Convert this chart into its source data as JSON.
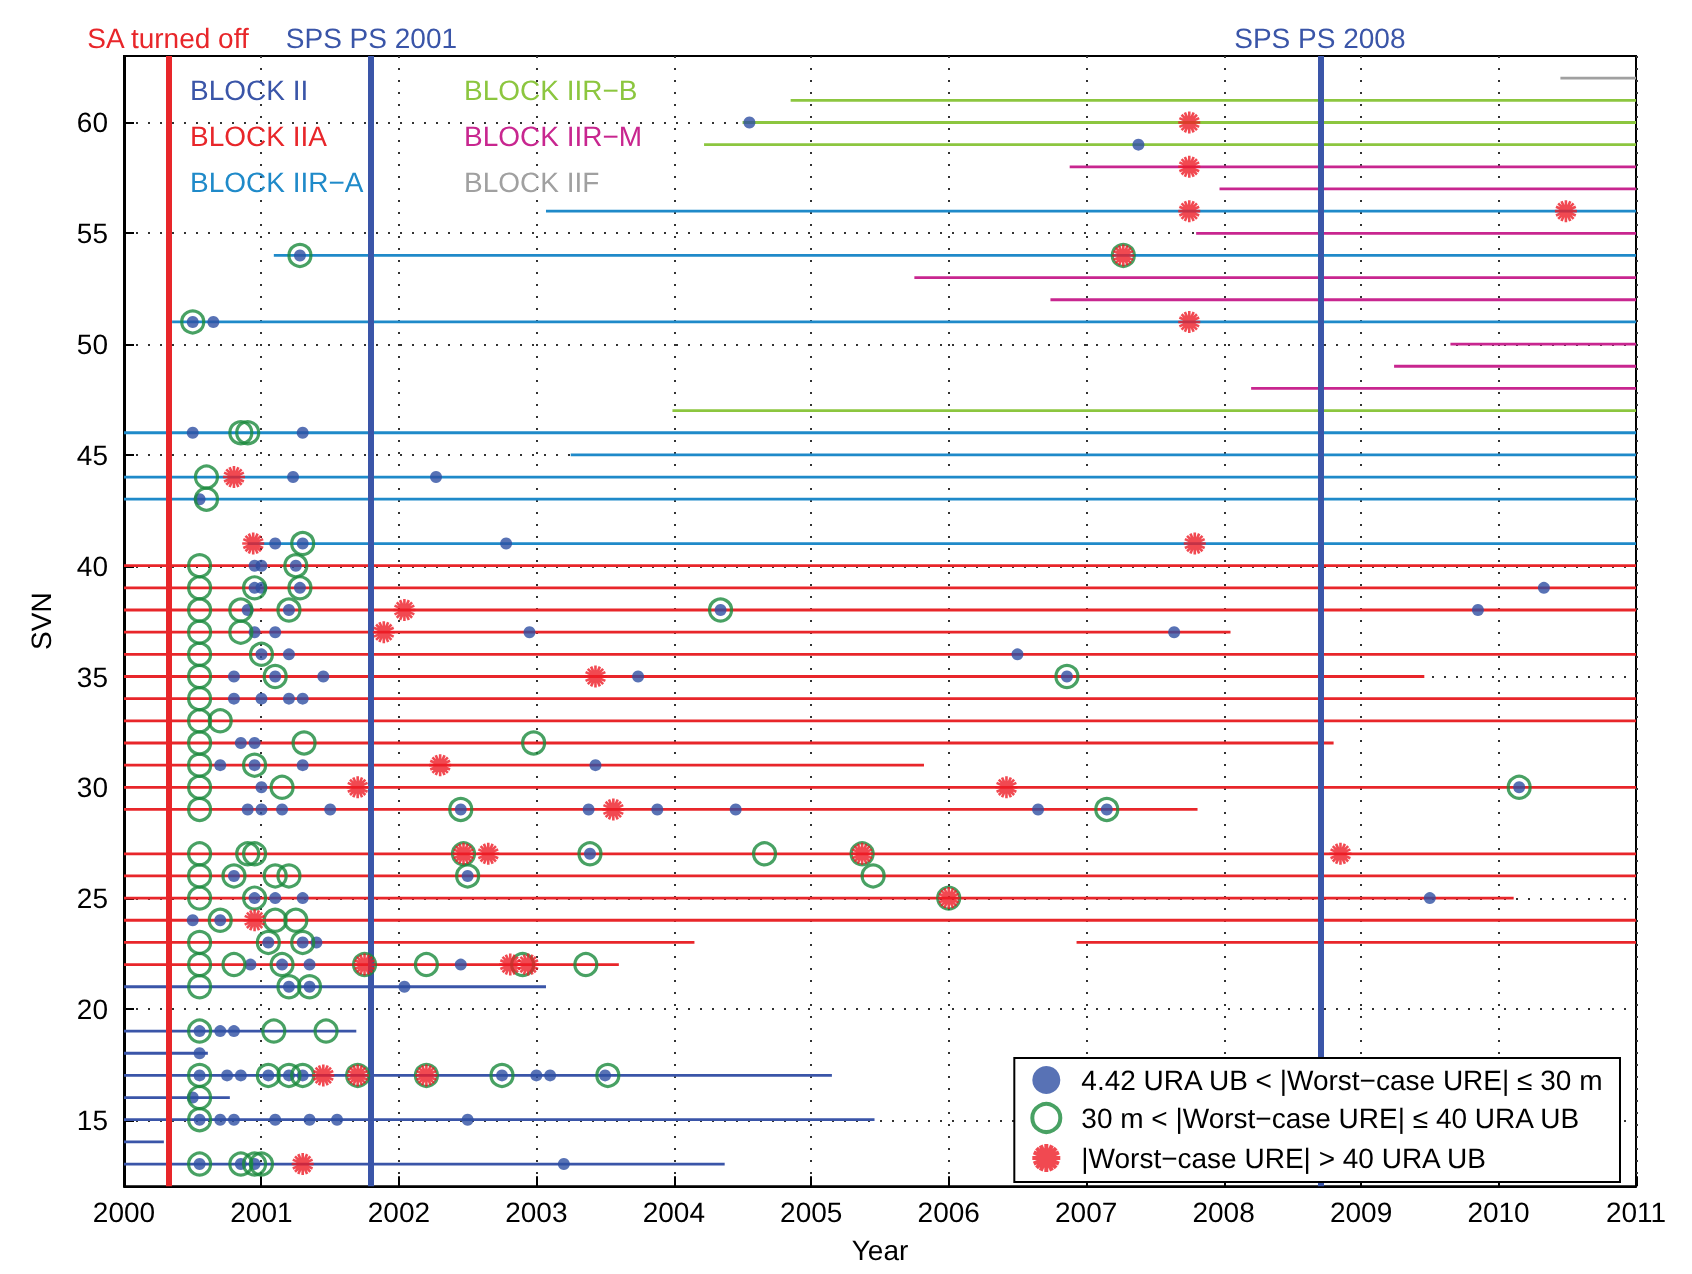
{
  "chart_data": {
    "type": "scatter",
    "xlabel": "Year",
    "ylabel": "SVN",
    "xlim": [
      2000,
      2011
    ],
    "ylim": [
      12,
      63
    ],
    "xticks": [
      2000,
      2001,
      2002,
      2003,
      2004,
      2005,
      2006,
      2007,
      2008,
      2009,
      2010,
      2011
    ],
    "yticks": [
      15,
      20,
      25,
      30,
      35,
      40,
      45,
      50,
      55,
      60
    ],
    "grid": true,
    "legend": "bottom right",
    "ref_lines": [
      {
        "axis": "x",
        "value": 2000.32,
        "label": "SA turned off",
        "color": "#e8262a"
      },
      {
        "axis": "x",
        "value": 2001.8,
        "label": "SPS PS 2001",
        "color": "#3a55a8"
      },
      {
        "axis": "x",
        "value": 2008.7,
        "label": "SPS PS 2008",
        "color": "#3a55a8"
      }
    ],
    "series": [
      {
        "name": "BLOCK II",
        "type": "line",
        "marker": "none",
        "color": "#3a55a8",
        "x": [
          2000,
          2004.37
        ],
        "values": [
          13,
          13
        ]
      },
      {
        "type": "line",
        "marker": "none",
        "color": "#3a55a8",
        "x": [
          2000,
          2000.29
        ],
        "values": [
          14,
          14
        ]
      },
      {
        "type": "line",
        "marker": "none",
        "color": "#3a55a8",
        "x": [
          2000,
          2005.46
        ],
        "values": [
          15,
          15
        ]
      },
      {
        "type": "line",
        "marker": "none",
        "color": "#3a55a8",
        "x": [
          2000,
          2000.77
        ],
        "values": [
          16,
          16
        ]
      },
      {
        "type": "line",
        "marker": "none",
        "color": "#3a55a8",
        "x": [
          2000,
          2005.15
        ],
        "values": [
          17,
          17
        ]
      },
      {
        "type": "line",
        "marker": "none",
        "color": "#3a55a8",
        "x": [
          2000,
          2000.61
        ],
        "values": [
          18,
          18
        ]
      },
      {
        "type": "line",
        "marker": "none",
        "color": "#3a55a8",
        "x": [
          2000,
          2001.69
        ],
        "values": [
          19,
          19
        ]
      },
      {
        "type": "line",
        "marker": "none",
        "color": "#3a55a8",
        "x": [
          2000,
          2003.07
        ],
        "values": [
          21,
          21
        ]
      },
      {
        "name": "BLOCK IIA",
        "type": "line",
        "marker": "none",
        "color": "#e8262a",
        "x": [
          2000,
          2003.6
        ],
        "values": [
          22,
          22
        ]
      },
      {
        "type": "line",
        "marker": "none",
        "color": "#e8262a",
        "x": [
          2000,
          2004.15
        ],
        "values": [
          23,
          23
        ]
      },
      {
        "type": "line",
        "marker": "none",
        "color": "#e8262a",
        "x": [
          2006.93,
          2011
        ],
        "values": [
          23,
          23
        ]
      },
      {
        "type": "line",
        "marker": "none",
        "color": "#e8262a",
        "x": [
          2000,
          2011
        ],
        "values": [
          24,
          24
        ]
      },
      {
        "type": "line",
        "marker": "none",
        "color": "#e8262a",
        "x": [
          2000,
          2010.11
        ],
        "values": [
          25,
          25
        ]
      },
      {
        "type": "line",
        "marker": "none",
        "color": "#e8262a",
        "x": [
          2000,
          2011
        ],
        "values": [
          26,
          26
        ]
      },
      {
        "type": "line",
        "marker": "none",
        "color": "#e8262a",
        "x": [
          2000,
          2011
        ],
        "values": [
          27,
          27
        ]
      },
      {
        "type": "line",
        "marker": "none",
        "color": "#e8262a",
        "x": [
          2000,
          2007.81
        ],
        "values": [
          29,
          29
        ]
      },
      {
        "type": "line",
        "marker": "none",
        "color": "#e8262a",
        "x": [
          2000,
          2011
        ],
        "values": [
          30,
          30
        ]
      },
      {
        "type": "line",
        "marker": "none",
        "color": "#e8262a",
        "x": [
          2000,
          2005.82
        ],
        "values": [
          31,
          31
        ]
      },
      {
        "type": "line",
        "marker": "none",
        "color": "#e8262a",
        "x": [
          2000,
          2008.8
        ],
        "values": [
          32,
          32
        ]
      },
      {
        "type": "line",
        "marker": "none",
        "color": "#e8262a",
        "x": [
          2000,
          2011
        ],
        "values": [
          33,
          33
        ]
      },
      {
        "type": "line",
        "marker": "none",
        "color": "#e8262a",
        "x": [
          2000,
          2011
        ],
        "values": [
          34,
          34
        ]
      },
      {
        "type": "line",
        "marker": "none",
        "color": "#e8262a",
        "x": [
          2000,
          2009.46
        ],
        "values": [
          35,
          35
        ]
      },
      {
        "type": "line",
        "marker": "none",
        "color": "#e8262a",
        "x": [
          2000,
          2011
        ],
        "values": [
          36,
          36
        ]
      },
      {
        "type": "line",
        "marker": "none",
        "color": "#e8262a",
        "x": [
          2000,
          2008.05
        ],
        "values": [
          37,
          37
        ]
      },
      {
        "type": "line",
        "marker": "none",
        "color": "#e8262a",
        "x": [
          2000,
          2011
        ],
        "values": [
          38,
          38
        ]
      },
      {
        "type": "line",
        "marker": "none",
        "color": "#e8262a",
        "x": [
          2000,
          2011
        ],
        "values": [
          39,
          39
        ]
      },
      {
        "type": "line",
        "marker": "none",
        "color": "#e8262a",
        "x": [
          2000,
          2011
        ],
        "values": [
          40,
          40
        ]
      },
      {
        "name": "BLOCK IIR−A",
        "type": "line",
        "marker": "none",
        "color": "#1f8ac9",
        "x": [
          2000.9,
          2011
        ],
        "values": [
          41,
          41
        ]
      },
      {
        "type": "line",
        "marker": "none",
        "color": "#1f8ac9",
        "x": [
          2000,
          2011
        ],
        "values": [
          43,
          43
        ]
      },
      {
        "type": "line",
        "marker": "none",
        "color": "#1f8ac9",
        "x": [
          2000,
          2011
        ],
        "values": [
          44,
          44
        ]
      },
      {
        "type": "line",
        "marker": "none",
        "color": "#1f8ac9",
        "x": [
          2003.25,
          2011
        ],
        "values": [
          45,
          45
        ]
      },
      {
        "type": "line",
        "marker": "none",
        "color": "#1f8ac9",
        "x": [
          2000,
          2011
        ],
        "values": [
          46,
          46
        ]
      },
      {
        "type": "line",
        "marker": "none",
        "color": "#1f8ac9",
        "x": [
          2000.35,
          2011
        ],
        "values": [
          51,
          51
        ]
      },
      {
        "type": "line",
        "marker": "none",
        "color": "#1f8ac9",
        "x": [
          2001.09,
          2011
        ],
        "values": [
          54,
          54
        ]
      },
      {
        "type": "line",
        "marker": "none",
        "color": "#1f8ac9",
        "x": [
          2003.07,
          2011
        ],
        "values": [
          56,
          56
        ]
      },
      {
        "name": "BLOCK IIR−B",
        "type": "line",
        "marker": "none",
        "color": "#8cc63f",
        "x": [
          2003.99,
          2011
        ],
        "values": [
          47,
          47
        ]
      },
      {
        "type": "line",
        "marker": "none",
        "color": "#8cc63f",
        "x": [
          2004.22,
          2011
        ],
        "values": [
          59,
          59
        ]
      },
      {
        "type": "line",
        "marker": "none",
        "color": "#8cc63f",
        "x": [
          2004.5,
          2011
        ],
        "values": [
          60,
          60
        ]
      },
      {
        "type": "line",
        "marker": "none",
        "color": "#8cc63f",
        "x": [
          2004.85,
          2011
        ],
        "values": [
          61,
          61
        ]
      },
      {
        "name": "BLOCK IIR−M",
        "type": "line",
        "marker": "none",
        "color": "#c8268f",
        "x": [
          2008.2,
          2011
        ],
        "values": [
          48,
          48
        ]
      },
      {
        "type": "line",
        "marker": "none",
        "color": "#c8268f",
        "x": [
          2009.24,
          2011
        ],
        "values": [
          49,
          49
        ]
      },
      {
        "type": "line",
        "marker": "none",
        "color": "#c8268f",
        "x": [
          2009.65,
          2011
        ],
        "values": [
          50,
          50
        ]
      },
      {
        "type": "line",
        "marker": "none",
        "color": "#c8268f",
        "x": [
          2006.74,
          2011
        ],
        "values": [
          52,
          52
        ]
      },
      {
        "type": "line",
        "marker": "none",
        "color": "#c8268f",
        "x": [
          2005.75,
          2011
        ],
        "values": [
          53,
          53
        ]
      },
      {
        "type": "line",
        "marker": "none",
        "color": "#c8268f",
        "x": [
          2007.8,
          2011
        ],
        "values": [
          55,
          55
        ]
      },
      {
        "type": "line",
        "marker": "none",
        "color": "#c8268f",
        "x": [
          2007.97,
          2011
        ],
        "values": [
          57,
          57
        ]
      },
      {
        "type": "line",
        "marker": "none",
        "color": "#c8268f",
        "x": [
          2006.88,
          2011
        ],
        "values": [
          58,
          58
        ]
      },
      {
        "name": "BLOCK IIF",
        "type": "line",
        "marker": "none",
        "color": "#a0a0a0",
        "x": [
          2010.45,
          2011
        ],
        "values": [
          62,
          62
        ]
      },
      {
        "name": "4.42 URA UB < |Worst−case URE| ≤ 30 m",
        "marker": "circle",
        "color": "#2e4fa3",
        "x": [
          2000.55,
          2000.85,
          2000.95,
          2003.2,
          2000.55,
          2000.7,
          2000.8,
          2001.1,
          2001.35,
          2001.55,
          2002.5,
          2000.5,
          2000.55,
          2000.75,
          2000.85,
          2001.05,
          2001.2,
          2001.3,
          2002.75,
          2003.0,
          2003.1,
          2003.5,
          2000.55,
          2000.55,
          2000.7,
          2000.8,
          2001.2,
          2001.35,
          2002.04,
          2000.92,
          2001.15,
          2001.35,
          2002.45,
          2001.05,
          2001.3,
          2001.4,
          2000.5,
          2000.7,
          2000.95,
          2001.1,
          2001.3,
          2009.5,
          2000.8,
          2002.5,
          2003.39,
          2000.9,
          2001.0,
          2001.15,
          2001.5,
          2002.45,
          2003.38,
          2003.88,
          2004.45,
          2006.65,
          2007.15,
          2001.0,
          2010.15,
          2000.7,
          2000.95,
          2001.3,
          2003.43,
          2000.85,
          2000.95,
          2000.8,
          2001.0,
          2001.2,
          2001.3,
          2000.8,
          2001.1,
          2001.45,
          2003.74,
          2006.86,
          2001.0,
          2001.2,
          2006.5,
          2000.95,
          2001.1,
          2002.95,
          2007.64,
          2000.9,
          2001.2,
          2004.34,
          2009.85,
          2000.95,
          2001.0,
          2001.28,
          2010.33,
          2000.95,
          2001.0,
          2001.25,
          2001.1,
          2001.3,
          2002.78,
          2000.55,
          2001.23,
          2002.27,
          2000.5,
          2001.3,
          2000.5,
          2000.65,
          2001.28,
          2007.38,
          2004.55
        ],
        "values": [
          13,
          13,
          13,
          13,
          15,
          15,
          15,
          15,
          15,
          15,
          15,
          16,
          17,
          17,
          17,
          17,
          17,
          17,
          17,
          17,
          17,
          17,
          18,
          19,
          19,
          19,
          21,
          21,
          21,
          22,
          22,
          22,
          22,
          23,
          23,
          23,
          24,
          24,
          25,
          25,
          25,
          25,
          26,
          26,
          27,
          29,
          29,
          29,
          29,
          29,
          29,
          29,
          29,
          29,
          29,
          30,
          30,
          31,
          31,
          31,
          31,
          32,
          32,
          34,
          34,
          34,
          34,
          35,
          35,
          35,
          35,
          35,
          36,
          36,
          36,
          37,
          37,
          37,
          37,
          38,
          38,
          38,
          38,
          39,
          39,
          39,
          39,
          40,
          40,
          40,
          41,
          41,
          41,
          43,
          44,
          44,
          46,
          46,
          51,
          51,
          54,
          59,
          60
        ]
      },
      {
        "name": "30 m < |Worst−case URE| ≤ 40 URA UB",
        "marker": "circle",
        "color": "#1a8a3c",
        "x": [
          2000.55,
          2000.85,
          2000.95,
          2001.0,
          2000.55,
          2000.55,
          2000.55,
          2001.05,
          2001.2,
          2001.3,
          2001.7,
          2002.2,
          2002.75,
          2003.52,
          2000.55,
          2001.09,
          2001.47,
          2000.55,
          2001.2,
          2001.35,
          2000.55,
          2000.8,
          2001.15,
          2001.75,
          2002.2,
          2002.9,
          2003.36,
          2000.55,
          2001.05,
          2001.3,
          2000.7,
          2001.1,
          2001.25,
          2000.55,
          2000.95,
          2006.0,
          2000.55,
          2000.8,
          2001.1,
          2001.2,
          2002.5,
          2005.45,
          2000.55,
          2000.9,
          2000.95,
          2002.47,
          2003.39,
          2004.66,
          2005.37,
          2000.55,
          2002.45,
          2007.15,
          2000.55,
          2001.15,
          2010.15,
          2000.55,
          2000.95,
          2000.55,
          2001.31,
          2002.98,
          2000.55,
          2000.7,
          2000.55,
          2000.55,
          2001.1,
          2006.86,
          2000.55,
          2001.0,
          2000.55,
          2000.85,
          2000.55,
          2000.85,
          2001.2,
          2004.34,
          2000.55,
          2000.95,
          2001.28,
          2000.55,
          2001.25,
          2001.3,
          2000.6,
          2000.6,
          2000.85,
          2000.9,
          2000.5,
          2001.28,
          2007.27
        ],
        "values": [
          13,
          13,
          13,
          13,
          15,
          16,
          17,
          17,
          17,
          17,
          17,
          17,
          17,
          17,
          19,
          19,
          19,
          21,
          21,
          21,
          22,
          22,
          22,
          22,
          22,
          22,
          22,
          23,
          23,
          23,
          24,
          24,
          24,
          25,
          25,
          25,
          26,
          26,
          26,
          26,
          26,
          26,
          27,
          27,
          27,
          27,
          27,
          27,
          27,
          29,
          29,
          29,
          30,
          30,
          30,
          31,
          31,
          32,
          32,
          32,
          33,
          33,
          34,
          35,
          35,
          35,
          36,
          36,
          37,
          37,
          38,
          38,
          38,
          38,
          39,
          39,
          39,
          40,
          40,
          41,
          43,
          44,
          46,
          46,
          51,
          54,
          54
        ]
      },
      {
        "name": "|Worst−case URE| > 40 URA UB",
        "marker": "cross",
        "color": "#ee1c25",
        "x": [
          2001.3,
          2001.45,
          2001.7,
          2002.2,
          2001.75,
          2002.81,
          2002.94,
          2000.95,
          2006.0,
          2002.47,
          2002.65,
          2005.37,
          2008.85,
          2003.56,
          2001.7,
          2006.42,
          2002.3,
          2003.43,
          2001.89,
          2002.04,
          2000.94,
          2007.79,
          2000.8,
          2007.75,
          2007.27,
          2007.75,
          2010.49,
          2007.75,
          2007.75
        ],
        "values": [
          13,
          17,
          17,
          17,
          22,
          22,
          22,
          24,
          25,
          27,
          27,
          27,
          27,
          29,
          30,
          30,
          31,
          35,
          37,
          38,
          41,
          41,
          44,
          51,
          54,
          56,
          56,
          58,
          60
        ]
      }
    ]
  }
}
